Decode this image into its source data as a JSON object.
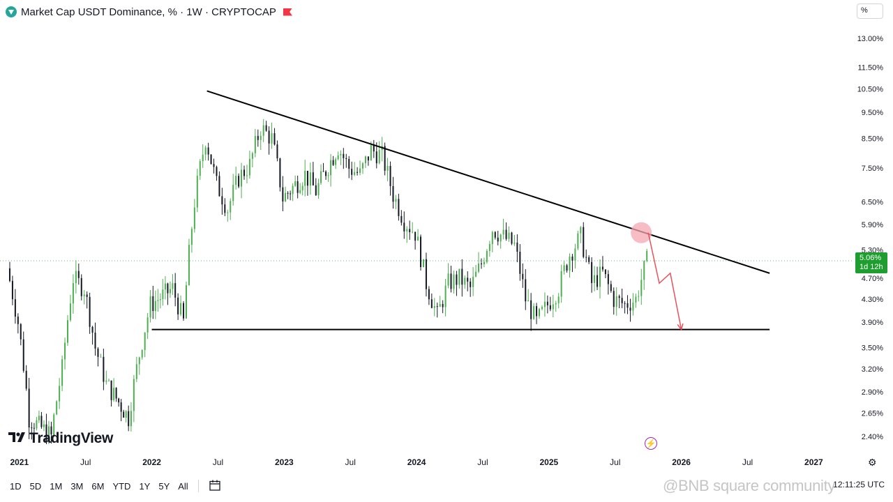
{
  "header": {
    "title": "Market Cap USDT Dominance, % · 1W · CRYPTOCAP"
  },
  "scale_button": "%",
  "price_tag": {
    "value": "5.06%",
    "countdown": "1d 12h"
  },
  "brand": "TradingView",
  "timeframes": [
    "1D",
    "5D",
    "1M",
    "3M",
    "6M",
    "YTD",
    "1Y",
    "5Y",
    "All"
  ],
  "clock": "12:11:25 UTC",
  "watermark": "@BNB square community",
  "colors": {
    "up": "#4caf50",
    "down": "#131722",
    "annotation": "#e8505b",
    "price_tag": "#1e9e2f"
  },
  "chart_data": {
    "type": "candlestick",
    "symbol": "Market Cap USDT Dominance",
    "interval": "1W",
    "source": "CRYPTOCAP",
    "y_scale": "log",
    "ylim": [
      2.25,
      14.0
    ],
    "y_ticks": [
      "13.00%",
      "11.50%",
      "10.50%",
      "9.50%",
      "8.50%",
      "7.50%",
      "6.50%",
      "5.90%",
      "5.30%",
      "4.70%",
      "4.30%",
      "3.90%",
      "3.50%",
      "3.20%",
      "2.90%",
      "2.65%",
      "2.40%"
    ],
    "x_ticks": [
      "2021",
      "Jul",
      "2022",
      "Jul",
      "2023",
      "Jul",
      "2024",
      "Jul",
      "2025",
      "Jul",
      "2026",
      "Jul",
      "2027"
    ],
    "x_range": [
      "2020-12",
      "2027-03"
    ],
    "last_value": 5.06,
    "approx_path": [
      {
        "date": "2020-12",
        "value": 4.9
      },
      {
        "date": "2021-01",
        "value": 3.9
      },
      {
        "date": "2021-02",
        "value": 2.6
      },
      {
        "date": "2021-04",
        "value": 2.4
      },
      {
        "date": "2021-05",
        "value": 3.2
      },
      {
        "date": "2021-06",
        "value": 4.7
      },
      {
        "date": "2021-07",
        "value": 4.5
      },
      {
        "date": "2021-08",
        "value": 3.5
      },
      {
        "date": "2021-09",
        "value": 3.0
      },
      {
        "date": "2021-11",
        "value": 2.6
      },
      {
        "date": "2021-12",
        "value": 3.4
      },
      {
        "date": "2022-01",
        "value": 4.2
      },
      {
        "date": "2022-03",
        "value": 4.5
      },
      {
        "date": "2022-04",
        "value": 3.9
      },
      {
        "date": "2022-05",
        "value": 6.5
      },
      {
        "date": "2022-06",
        "value": 8.5
      },
      {
        "date": "2022-07",
        "value": 7.0
      },
      {
        "date": "2022-08",
        "value": 6.3
      },
      {
        "date": "2022-09",
        "value": 7.2
      },
      {
        "date": "2022-10",
        "value": 7.6
      },
      {
        "date": "2022-11",
        "value": 8.9
      },
      {
        "date": "2022-12",
        "value": 8.5
      },
      {
        "date": "2023-01",
        "value": 6.6
      },
      {
        "date": "2023-03",
        "value": 7.3
      },
      {
        "date": "2023-04",
        "value": 6.8
      },
      {
        "date": "2023-06",
        "value": 8.2
      },
      {
        "date": "2023-07",
        "value": 7.5
      },
      {
        "date": "2023-08",
        "value": 7.3
      },
      {
        "date": "2023-09",
        "value": 8.1
      },
      {
        "date": "2023-10",
        "value": 7.9
      },
      {
        "date": "2023-11",
        "value": 6.7
      },
      {
        "date": "2023-12",
        "value": 6.0
      },
      {
        "date": "2024-01",
        "value": 5.7
      },
      {
        "date": "2024-02",
        "value": 4.6
      },
      {
        "date": "2024-03",
        "value": 4.0
      },
      {
        "date": "2024-04",
        "value": 4.6
      },
      {
        "date": "2024-05",
        "value": 4.7
      },
      {
        "date": "2024-06",
        "value": 4.5
      },
      {
        "date": "2024-07",
        "value": 5.0
      },
      {
        "date": "2024-08",
        "value": 5.8
      },
      {
        "date": "2024-09",
        "value": 5.6
      },
      {
        "date": "2024-10",
        "value": 5.4
      },
      {
        "date": "2024-11",
        "value": 4.3
      },
      {
        "date": "2024-12",
        "value": 3.9
      },
      {
        "date": "2025-01",
        "value": 4.2
      },
      {
        "date": "2025-02",
        "value": 4.5
      },
      {
        "date": "2025-03",
        "value": 5.2
      },
      {
        "date": "2025-04",
        "value": 5.6
      },
      {
        "date": "2025-05",
        "value": 4.6
      },
      {
        "date": "2025-06",
        "value": 4.8
      },
      {
        "date": "2025-07",
        "value": 4.3
      },
      {
        "date": "2025-08",
        "value": 4.2
      },
      {
        "date": "2025-09",
        "value": 4.3
      },
      {
        "date": "2025-10",
        "value": 5.06
      }
    ],
    "annotations": {
      "descending_trendline": [
        {
          "date": "2022-06",
          "value": 10.4
        },
        {
          "date": "2026-09",
          "value": 4.8
        }
      ],
      "horizontal_support": [
        {
          "date": "2022-01",
          "value": 3.78
        },
        {
          "date": "2026-09",
          "value": 3.78
        }
      ],
      "projection_arrow": [
        {
          "date": "2025-10",
          "value": 5.7
        },
        {
          "date": "2025-11",
          "value": 4.6
        },
        {
          "date": "2025-12",
          "value": 4.8
        },
        {
          "date": "2026-01",
          "value": 3.78
        }
      ]
    }
  }
}
